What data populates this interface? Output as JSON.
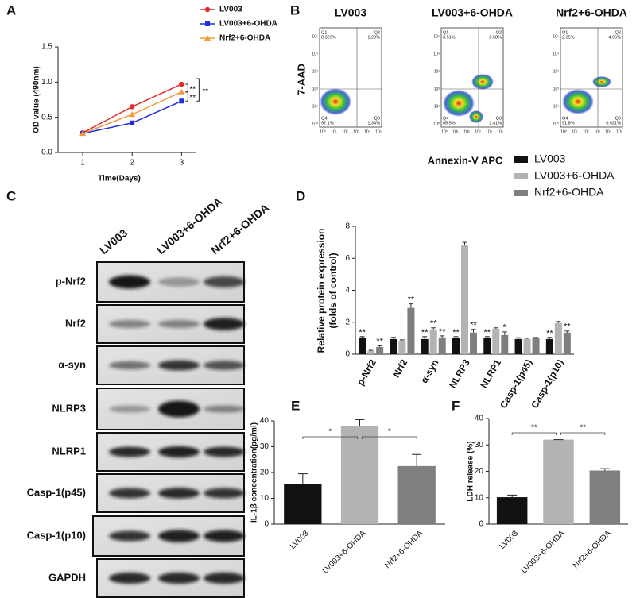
{
  "panel_labels": [
    "A",
    "B",
    "C",
    "D",
    "E",
    "F"
  ],
  "chart_data": [
    {
      "type": "line",
      "xlabel": "Time(Days)",
      "ylabel": "OD value (490nm)",
      "x": [
        1,
        2,
        3
      ],
      "xlim": [
        0.5,
        3.3
      ],
      "xticks": [
        1,
        2,
        3
      ],
      "ylim": [
        0,
        1.5
      ],
      "yticks": [
        {
          "value": 0,
          "label": "0.0"
        },
        0.5,
        {
          "value": 1,
          "label": "1.0"
        },
        1.5
      ],
      "series": [
        {
          "name": "LV003",
          "color": "#e8262b",
          "marker": "circle",
          "values": [
            0.28,
            0.65,
            0.97
          ]
        },
        {
          "name": "LV003+6-OHDA",
          "color": "#1f2ee0",
          "marker": "square",
          "values": [
            0.27,
            0.42,
            0.73
          ]
        },
        {
          "name": "Nrf2+6-OHDA",
          "color": "#f59a3b",
          "marker": "triangle",
          "values": [
            0.27,
            0.54,
            0.86
          ]
        }
      ],
      "annotations": [
        "**",
        "**",
        "**"
      ]
    },
    {
      "type": "grouped-bar",
      "ylabel": [
        "Relative protein expression",
        "(folds of control)"
      ],
      "categories": [
        "p-Nrf2",
        "Nrf2",
        "α-syn",
        "NLRP3",
        "NLRP1",
        "Casp-1(p45)",
        "Casp-1(p10)"
      ],
      "ylim": [
        0,
        8
      ],
      "yticks": [
        0,
        2,
        4,
        6,
        8
      ],
      "series": [
        {
          "name": "LV003",
          "color": "#111111",
          "values": [
            1.0,
            0.95,
            0.95,
            1.0,
            1.0,
            0.95,
            0.95
          ],
          "errors": [
            0.1,
            0.1,
            0.15,
            0.1,
            0.1,
            0.08,
            0.1
          ],
          "significance": [
            "**",
            null,
            "**",
            "**",
            "**",
            null,
            "**"
          ]
        },
        {
          "name": "LV003+6-OHDA",
          "color": "#b3b3b3",
          "values": [
            0.2,
            0.85,
            1.55,
            6.8,
            1.6,
            0.95,
            1.95
          ],
          "errors": [
            0.05,
            0.05,
            0.1,
            0.2,
            0.05,
            0.05,
            0.1
          ],
          "significance": [
            null,
            null,
            "**",
            null,
            null,
            null,
            null
          ]
        },
        {
          "name": "Nrf2+6-OHDA",
          "color": "#7f7f7f",
          "values": [
            0.45,
            2.9,
            1.05,
            1.35,
            1.2,
            1.0,
            1.35
          ],
          "errors": [
            0.08,
            0.25,
            0.1,
            0.2,
            0.2,
            0.05,
            0.1
          ],
          "significance": [
            "**",
            "**",
            "**",
            "**",
            "*",
            null,
            "**"
          ]
        }
      ]
    },
    {
      "type": "bar",
      "ylabel": "IL-1β concentration(pg/ml)",
      "categories": [
        "LV003",
        "LV003+6-OHDA",
        "Nrf2+6-OHDA"
      ],
      "values": [
        15.5,
        38,
        22.5
      ],
      "errors": [
        4,
        2.5,
        4.5
      ],
      "colors": [
        "#111111",
        "#b3b3b3",
        "#7f7f7f"
      ],
      "ylim": [
        0,
        40
      ],
      "yticks": [
        0,
        10,
        20,
        30,
        40
      ],
      "annotations": [
        "*",
        "*"
      ]
    },
    {
      "type": "bar",
      "ylabel": "LDH release (%)",
      "categories": [
        "LV003",
        "LV003+6-OHDA",
        "Nrf2+6-OHDA"
      ],
      "values": [
        10.2,
        32,
        20.3
      ],
      "errors": [
        0.8,
        0,
        0.7
      ],
      "colors": [
        "#111111",
        "#b3b3b3",
        "#7f7f7f"
      ],
      "ylim": [
        0,
        40
      ],
      "yticks": [
        0,
        10,
        20,
        30,
        40
      ],
      "annotations": [
        "**",
        "**"
      ]
    }
  ],
  "flow": {
    "ylabel": "7-AAD",
    "xlabel": "Annexin-V APC",
    "quadrants": [
      "Q1",
      "Q2",
      "Q4",
      "Q3"
    ],
    "axis_ticks": [
      "10⁰",
      "10¹",
      "10²",
      "10³",
      "10⁴",
      "10⁵"
    ],
    "plots": [
      {
        "title": "LV003",
        "percents": [
          "0.323%",
          "1.23%",
          "97.1%",
          "1.34%"
        ]
      },
      {
        "title": "LV003+6-OHDA",
        "percents": [
          "3.51%",
          "8.58%",
          "85.5%",
          "2.41%"
        ]
      },
      {
        "title": "Nrf2+6-OHDA",
        "percents": [
          "2.35%",
          "4.96%",
          "91.8%",
          "0.921%"
        ]
      }
    ]
  },
  "blot": {
    "samples": [
      "LV003",
      "LV003+6-OHDA",
      "Nrf2+6-OHDA"
    ],
    "proteins": [
      "p-Nrf2",
      "Nrf2",
      "α-syn",
      "NLRP3",
      "NLRP1",
      "Casp-1(p45)",
      "Casp-1(p10)",
      "GAPDH"
    ]
  }
}
